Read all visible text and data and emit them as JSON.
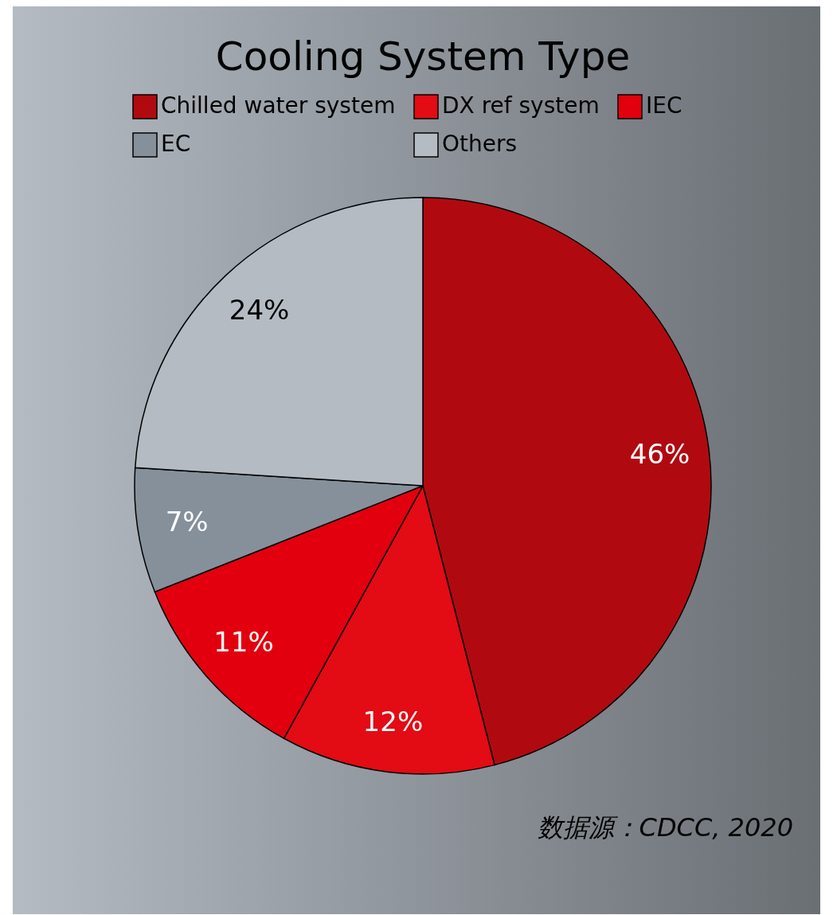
{
  "chart_data": {
    "type": "pie",
    "title": "Cooling System Type",
    "categories": [
      "Chilled water system",
      "DX ref system",
      "IEC",
      "EC",
      "Others"
    ],
    "values": [
      46,
      12,
      11,
      7,
      24
    ],
    "colors": [
      "#b00a10",
      "#e30b14",
      "#e2000f",
      "#86909a",
      "#b4bbc3"
    ],
    "value_labels": [
      "46%",
      "12%",
      "11%",
      "7%",
      "24%"
    ],
    "legend": "top",
    "annotations": [
      "数据源：CDCC, 2020"
    ]
  }
}
